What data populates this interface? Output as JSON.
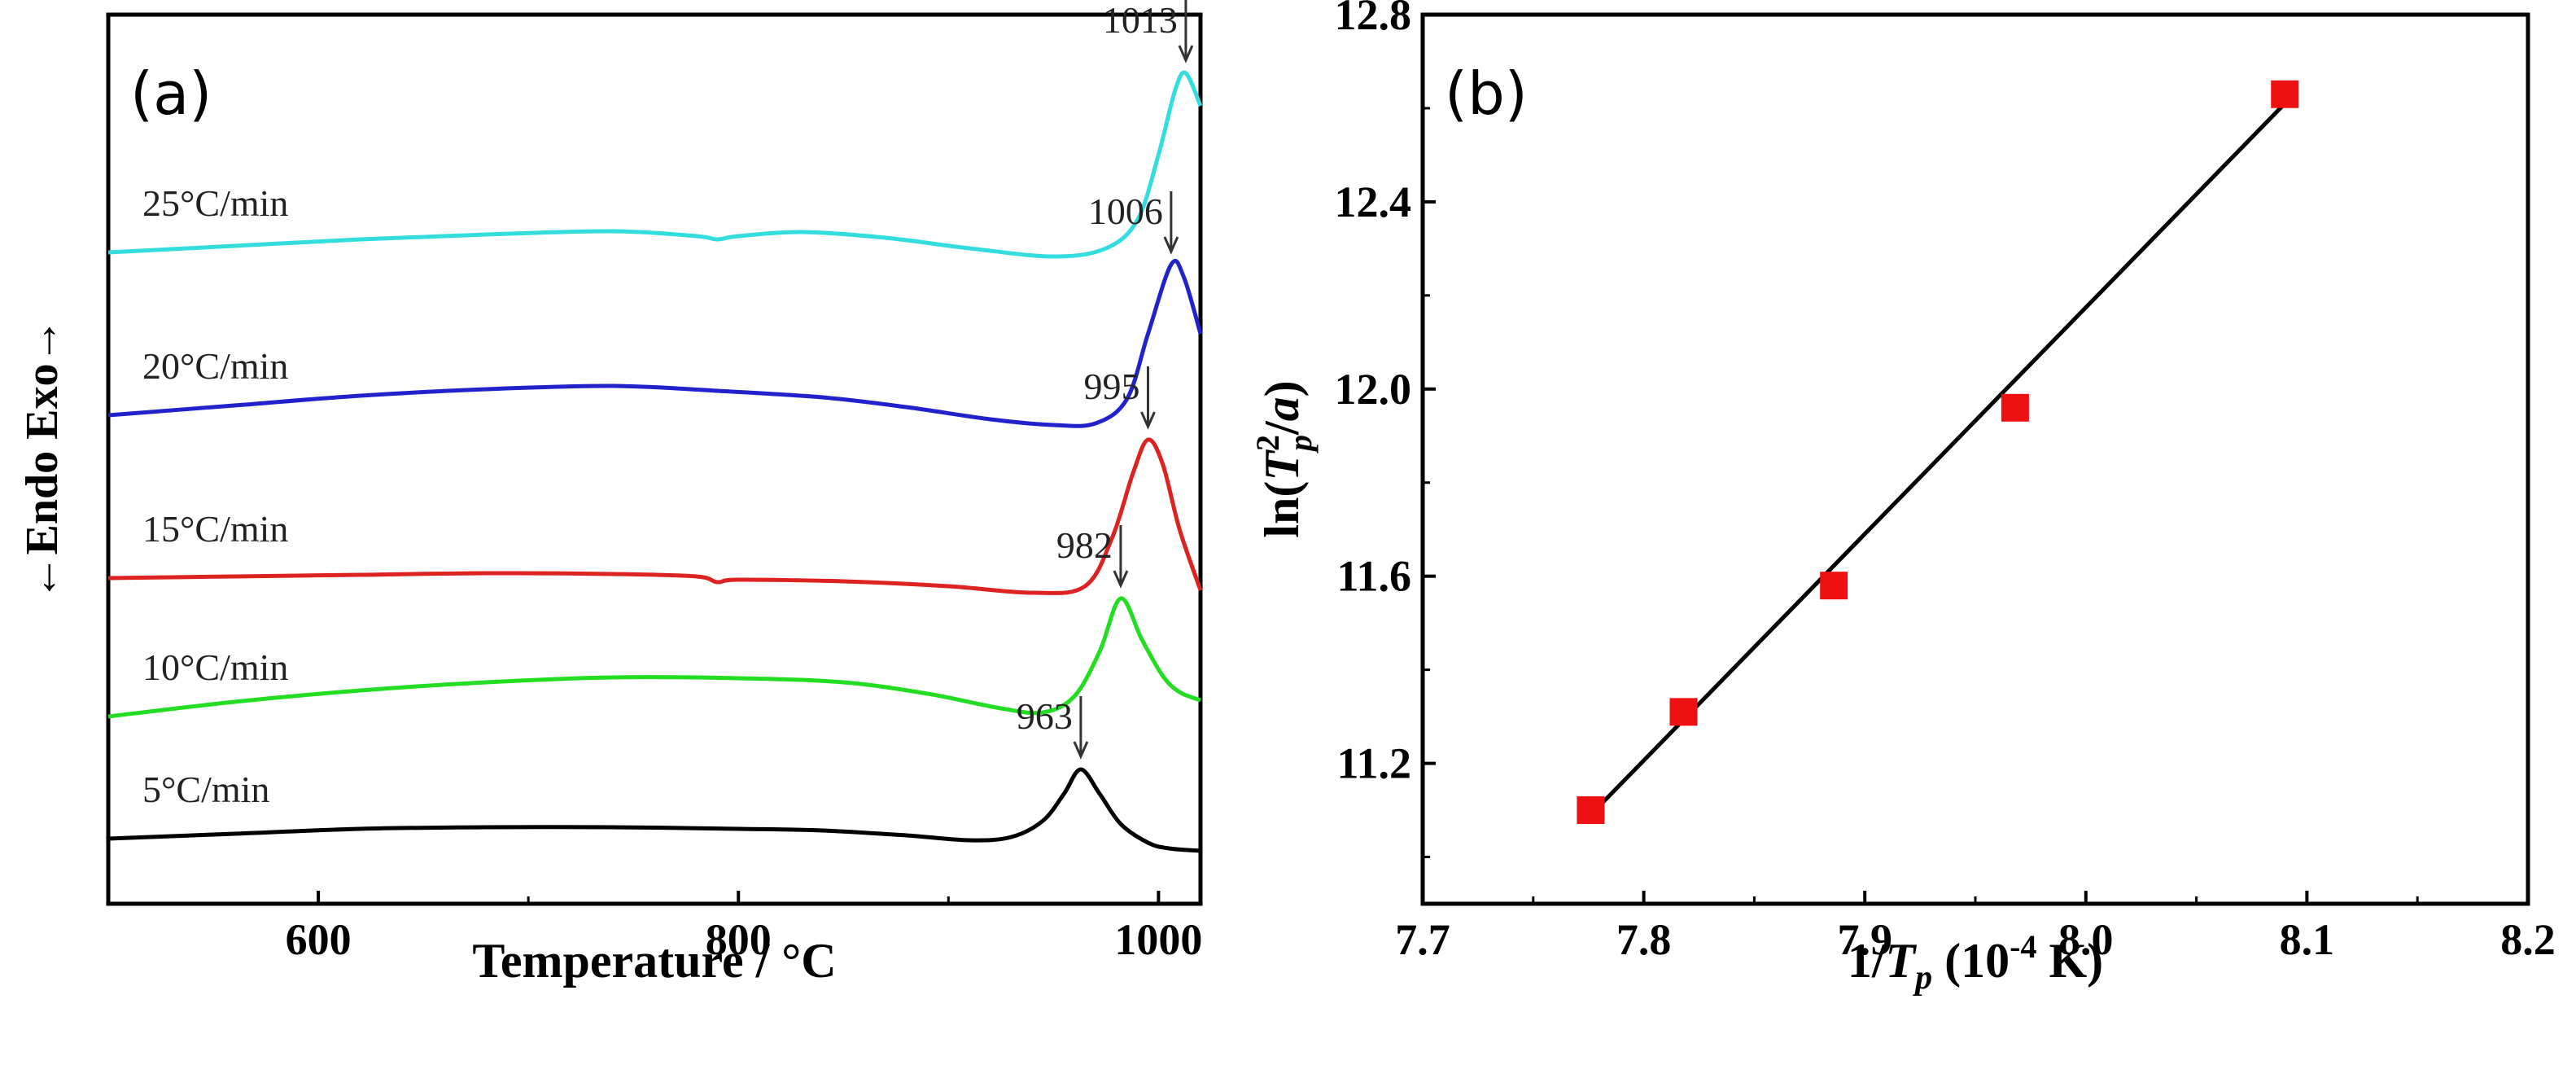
{
  "chart_data": [
    {
      "type": "line",
      "panel_label": "(a)",
      "xlabel": "Temperature / °C",
      "ylabel": "←Endo Exo→",
      "xlim": [
        500,
        1020
      ],
      "x_ticks": [
        600,
        800,
        1000
      ],
      "y_ticks": false,
      "grid": false,
      "series": [
        {
          "name": "5°C/min",
          "color": "#000000",
          "peak": 963,
          "offset": 0.4,
          "points": [
            [
              500,
              0
            ],
            [
              560,
              0.06
            ],
            [
              620,
              0.12
            ],
            [
              680,
              0.14
            ],
            [
              740,
              0.14
            ],
            [
              800,
              0.12
            ],
            [
              840,
              0.1
            ],
            [
              880,
              0.04
            ],
            [
              910,
              -0.02
            ],
            [
              930,
              0.02
            ],
            [
              945,
              0.22
            ],
            [
              955,
              0.55
            ],
            [
              963,
              0.85
            ],
            [
              972,
              0.55
            ],
            [
              982,
              0.18
            ],
            [
              995,
              -0.05
            ],
            [
              1005,
              -0.12
            ],
            [
              1020,
              -0.15
            ]
          ]
        },
        {
          "name": "10°C/min",
          "color": "#22dd22",
          "peak": 982,
          "offset": 1.9,
          "points": [
            [
              500,
              0
            ],
            [
              560,
              0.18
            ],
            [
              620,
              0.32
            ],
            [
              680,
              0.42
            ],
            [
              740,
              0.48
            ],
            [
              800,
              0.47
            ],
            [
              850,
              0.42
            ],
            [
              890,
              0.28
            ],
            [
              925,
              0.1
            ],
            [
              945,
              0.05
            ],
            [
              960,
              0.25
            ],
            [
              972,
              0.8
            ],
            [
              982,
              1.45
            ],
            [
              992,
              0.95
            ],
            [
              1002,
              0.5
            ],
            [
              1010,
              0.3
            ],
            [
              1020,
              0.2
            ]
          ]
        },
        {
          "name": "15°C/min",
          "color": "#dd2222",
          "peak": 995,
          "offset": 3.6,
          "points": [
            [
              500,
              0
            ],
            [
              560,
              0.02
            ],
            [
              620,
              0.04
            ],
            [
              680,
              0.06
            ],
            [
              740,
              0.05
            ],
            [
              780,
              0.02
            ],
            [
              790,
              -0.05
            ],
            [
              800,
              -0.02
            ],
            [
              850,
              -0.04
            ],
            [
              900,
              -0.1
            ],
            [
              940,
              -0.18
            ],
            [
              965,
              -0.1
            ],
            [
              978,
              0.5
            ],
            [
              988,
              1.3
            ],
            [
              995,
              1.7
            ],
            [
              1002,
              1.4
            ],
            [
              1010,
              0.6
            ],
            [
              1020,
              -0.15
            ]
          ]
        },
        {
          "name": "20°C/min",
          "color": "#2222cc",
          "peak": 1006,
          "offset": 5.6,
          "points": [
            [
              500,
              0
            ],
            [
              560,
              0.12
            ],
            [
              620,
              0.24
            ],
            [
              680,
              0.32
            ],
            [
              740,
              0.36
            ],
            [
              790,
              0.3
            ],
            [
              840,
              0.22
            ],
            [
              880,
              0.1
            ],
            [
              920,
              -0.05
            ],
            [
              950,
              -0.12
            ],
            [
              970,
              -0.1
            ],
            [
              985,
              0.2
            ],
            [
              995,
              1.0
            ],
            [
              1006,
              1.85
            ],
            [
              1012,
              1.7
            ],
            [
              1020,
              1.0
            ]
          ]
        },
        {
          "name": "25°C/min",
          "color": "#33dddd",
          "peak": 1013,
          "offset": 7.6,
          "points": [
            [
              500,
              0
            ],
            [
              560,
              0.08
            ],
            [
              620,
              0.16
            ],
            [
              680,
              0.22
            ],
            [
              740,
              0.26
            ],
            [
              780,
              0.2
            ],
            [
              790,
              0.16
            ],
            [
              800,
              0.2
            ],
            [
              830,
              0.25
            ],
            [
              870,
              0.18
            ],
            [
              910,
              0.05
            ],
            [
              950,
              -0.05
            ],
            [
              975,
              0.05
            ],
            [
              990,
              0.4
            ],
            [
              1000,
              1.2
            ],
            [
              1008,
              2.0
            ],
            [
              1013,
              2.2
            ],
            [
              1020,
              1.8
            ]
          ]
        }
      ]
    },
    {
      "type": "scatter",
      "panel_label": "(b)",
      "xlabel_parts": [
        "1/",
        "T",
        "p",
        " (10",
        "-4",
        " K)"
      ],
      "ylabel_parts": [
        "ln(",
        "T",
        "2",
        "p",
        "/",
        "a",
        ")"
      ],
      "xlim": [
        7.7,
        8.2
      ],
      "ylim": [
        10.9,
        12.8
      ],
      "x_ticks": [
        7.7,
        7.8,
        7.9,
        8.0,
        8.1,
        8.2
      ],
      "y_ticks": [
        11.2,
        11.6,
        12.0,
        12.4,
        12.8
      ],
      "grid": false,
      "marker_color": "#ee1111",
      "points": [
        {
          "x": 7.776,
          "y": 11.1
        },
        {
          "x": 7.818,
          "y": 11.31
        },
        {
          "x": 7.886,
          "y": 11.58
        },
        {
          "x": 7.968,
          "y": 11.96
        },
        {
          "x": 8.09,
          "y": 12.63
        }
      ],
      "fit_line": {
        "x0": 7.776,
        "y0": 11.09,
        "x1": 8.09,
        "y1": 12.61
      }
    }
  ]
}
